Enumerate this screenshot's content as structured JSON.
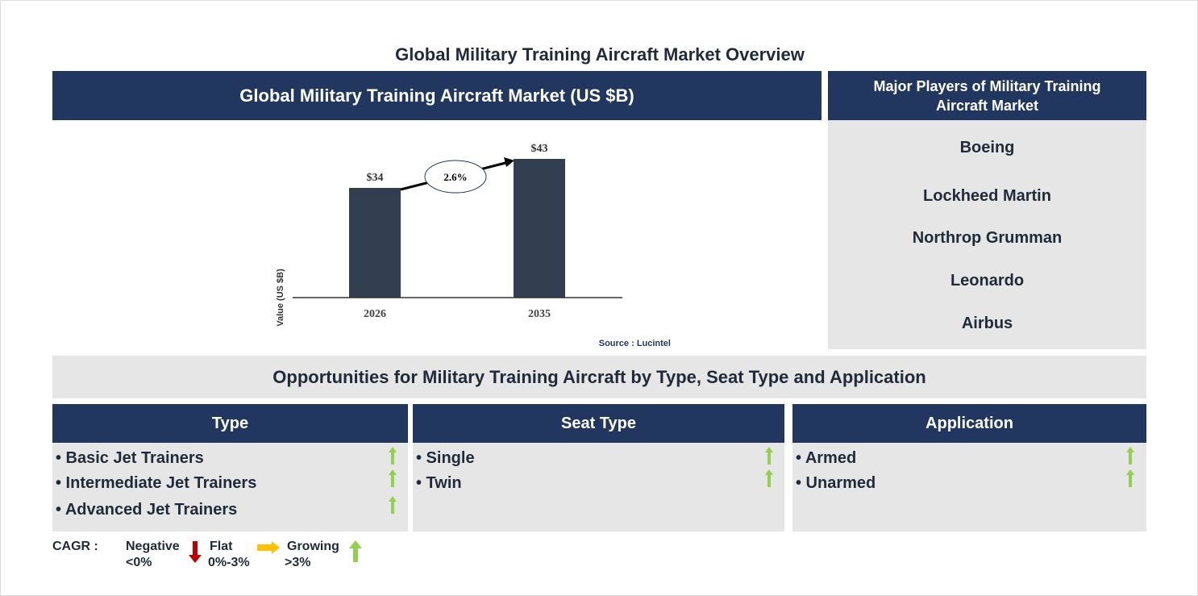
{
  "title": "Global Military Training Aircraft Market Overview",
  "chart_panel": {
    "header": "Global Military Training Aircraft Market (US $B)",
    "source": "Source : Lucintel"
  },
  "chart_data": {
    "type": "bar",
    "categories": [
      "2026",
      "2035"
    ],
    "values": [
      34,
      43
    ],
    "data_labels": [
      "$34",
      "$43"
    ],
    "ylabel": "Value (US $B)",
    "cagr_label": "2.6%",
    "ylim": [
      0,
      43
    ],
    "grid": false,
    "bar_color": "#333e50"
  },
  "players": {
    "header": "Major Players of Military Training Aircraft Market",
    "items": [
      "Boeing",
      "Lockheed Martin",
      "Northrop Grumman",
      "Leonardo",
      "Airbus"
    ]
  },
  "opportunities": {
    "header": "Opportunities for Military Training Aircraft by Type, Seat Type and Application",
    "columns": [
      {
        "title": "Type",
        "items": [
          "• Basic Jet Trainers",
          "• Intermediate Jet Trainers",
          "• Advanced Jet Trainers"
        ],
        "trend": "growing"
      },
      {
        "title": "Seat Type",
        "items": [
          "• Single",
          "• Twin"
        ],
        "trend": "growing"
      },
      {
        "title": "Application",
        "items": [
          "• Armed",
          "• Unarmed"
        ],
        "trend": "growing"
      }
    ]
  },
  "legend": {
    "label": "CAGR :",
    "negative": [
      "Negative",
      "<0%"
    ],
    "flat": [
      "Flat",
      "0%-3%"
    ],
    "growing": [
      "Growing",
      ">3%"
    ],
    "colors": {
      "negative": "#c00000",
      "flat": "#ffc000",
      "growing": "#92d050"
    }
  },
  "colors": {
    "navy": "#22375f",
    "panel": "#e6e6e6"
  }
}
